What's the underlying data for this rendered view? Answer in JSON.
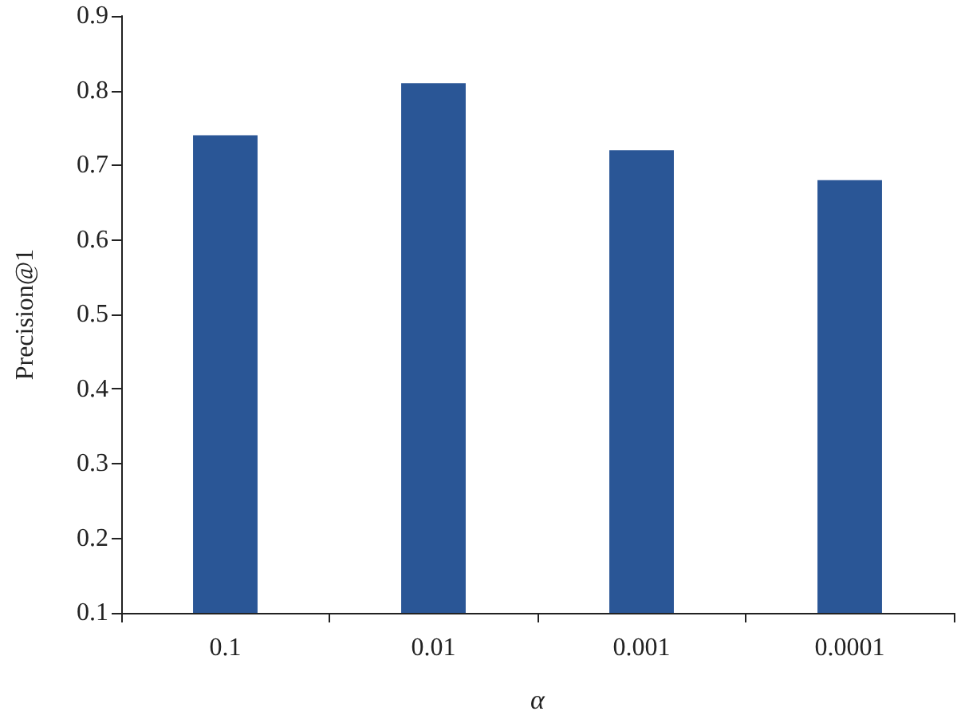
{
  "chart_data": {
    "type": "bar",
    "xlabel": "α",
    "ylabel": "Precision@1",
    "categories": [
      "0.1",
      "0.01",
      "0.001",
      "0.0001"
    ],
    "values": [
      0.74,
      0.81,
      0.72,
      0.68
    ],
    "color": "#2a5696",
    "ylim": [
      0.1,
      0.9
    ],
    "yticks": [
      0.1,
      0.2,
      0.3,
      0.4,
      0.5,
      0.6,
      0.7,
      0.8,
      0.9
    ],
    "grid": false
  }
}
